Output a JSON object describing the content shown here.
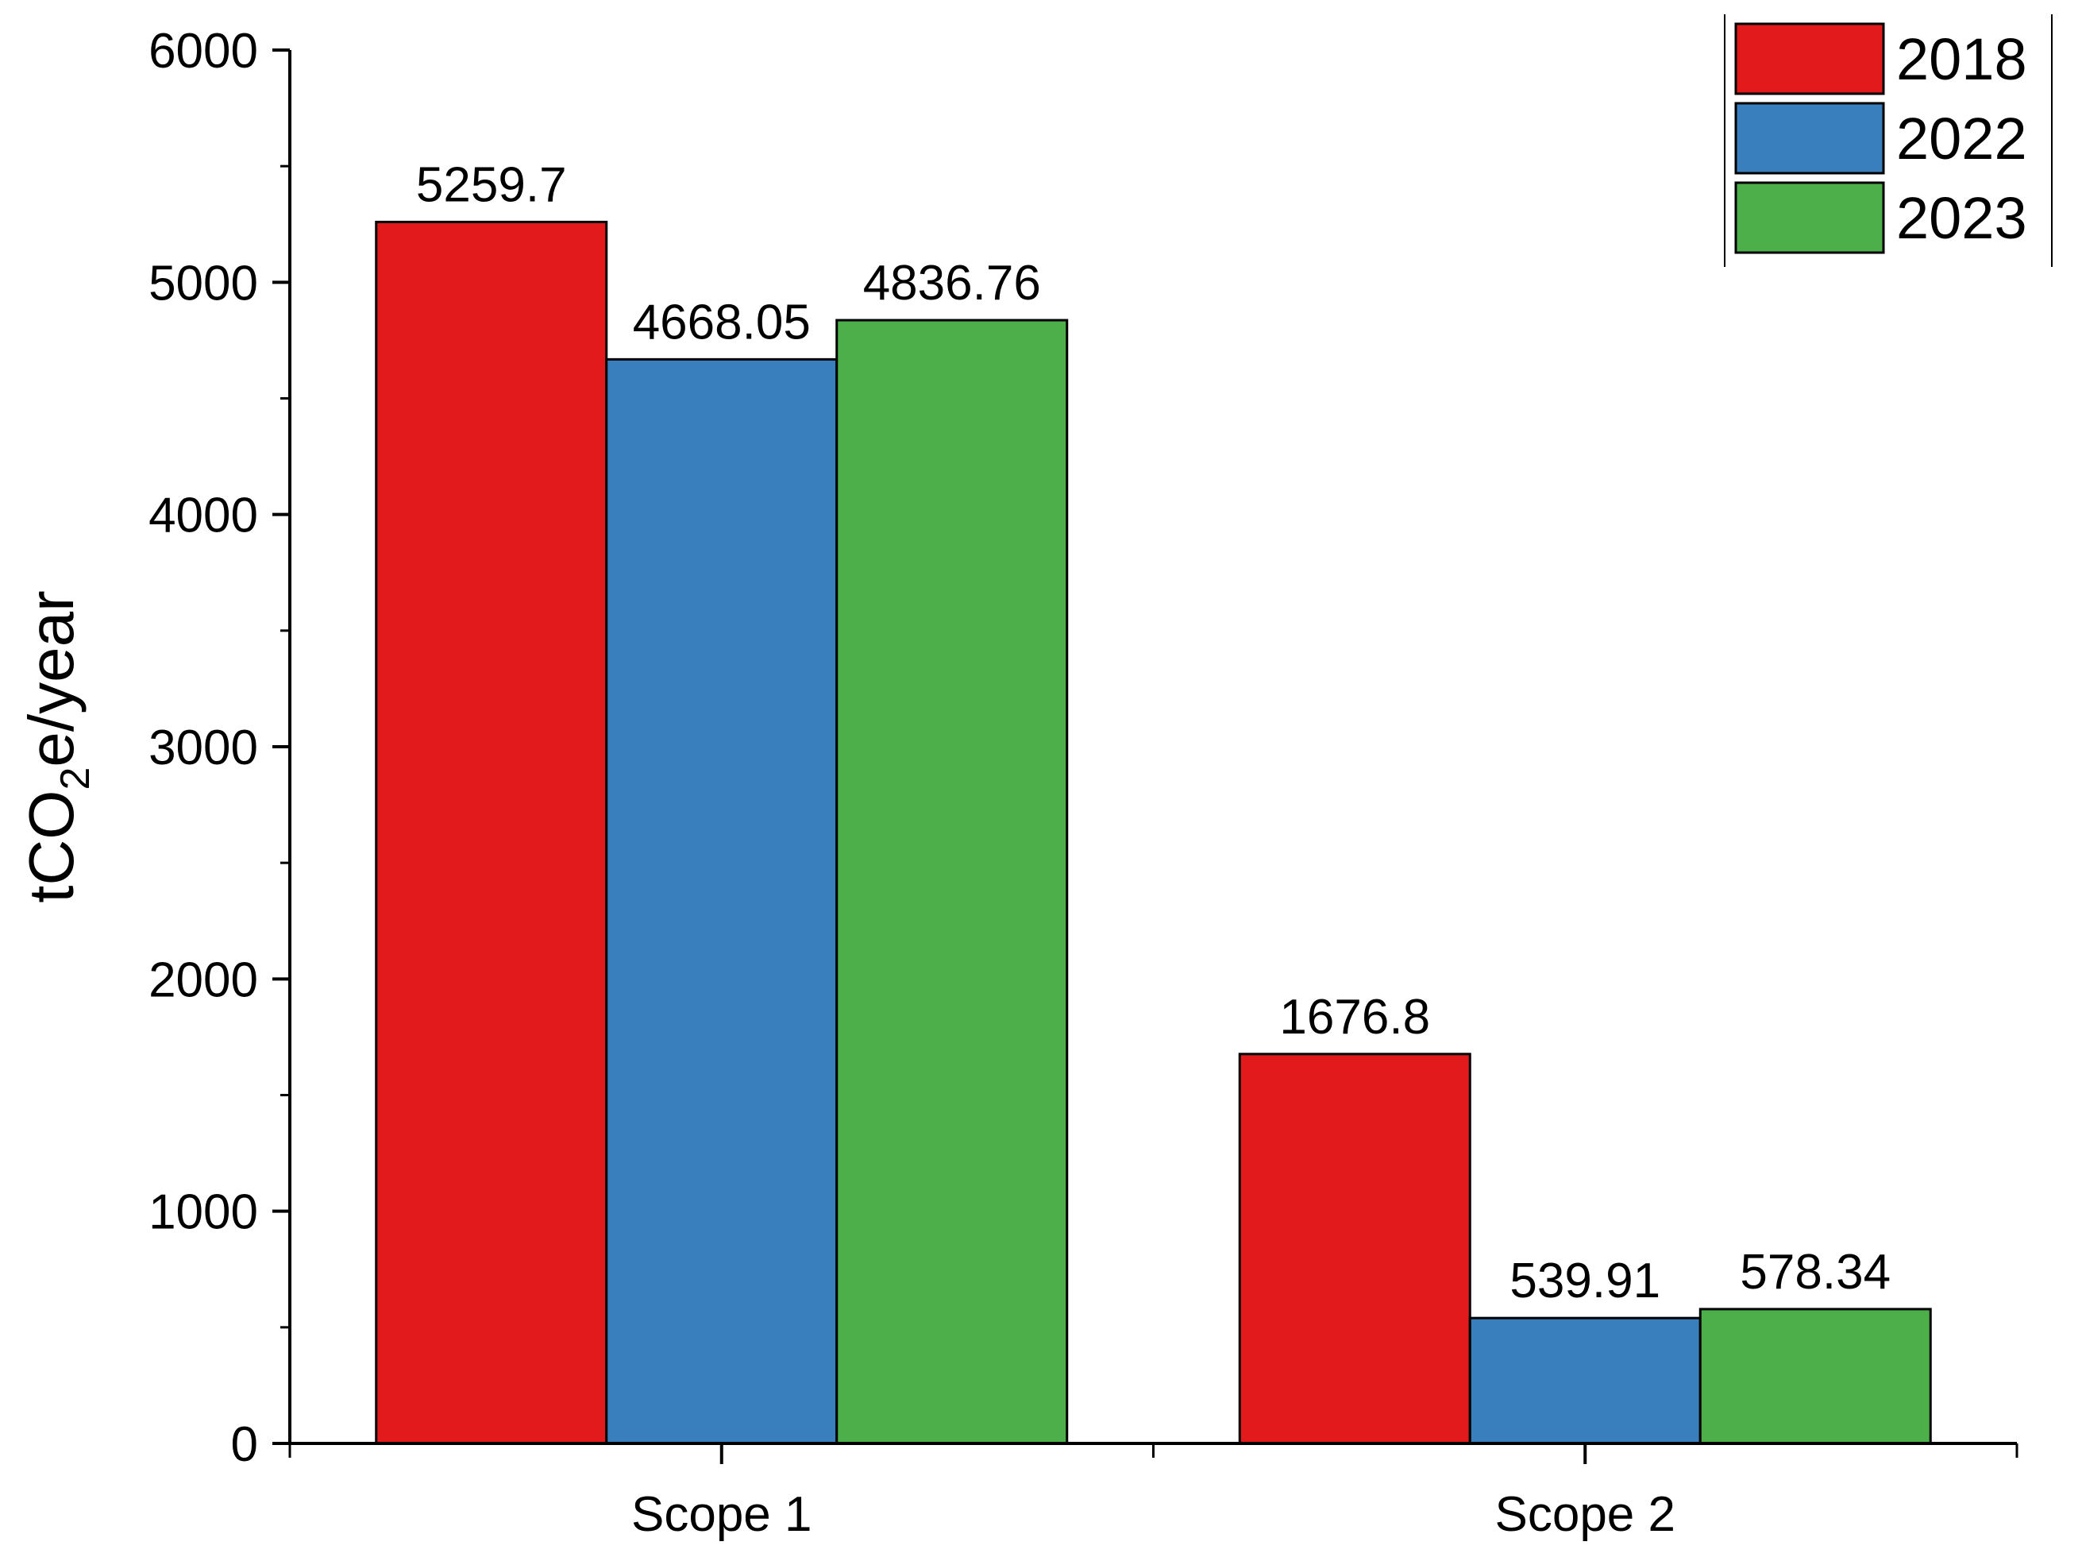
{
  "chart_data": {
    "type": "bar",
    "title": "",
    "xlabel": "",
    "ylabel": {
      "prefix": "tCO",
      "subscript": "2",
      "suffix": "e/year"
    },
    "categories": [
      "Scope 1",
      "Scope 2"
    ],
    "series": [
      {
        "name": "2018",
        "color": "#e31a1c",
        "values": [
          5259.7,
          1676.8
        ],
        "labels": [
          "5259.7",
          "1676.8"
        ]
      },
      {
        "name": "2022",
        "color": "#3a7fbd",
        "values": [
          4668.05,
          539.91
        ],
        "labels": [
          "4668.05",
          "539.91"
        ]
      },
      {
        "name": "2023",
        "color": "#4daf4a",
        "values": [
          4836.76,
          578.34
        ],
        "labels": [
          "4836.76",
          "578.34"
        ]
      }
    ],
    "ylim": [
      0,
      6000
    ],
    "yticks": [
      0,
      1000,
      2000,
      3000,
      4000,
      5000,
      6000
    ],
    "ytick_labels": [
      "0",
      "1000",
      "2000",
      "3000",
      "4000",
      "5000",
      "6000"
    ],
    "grid": false,
    "legend_position": "top-right"
  }
}
